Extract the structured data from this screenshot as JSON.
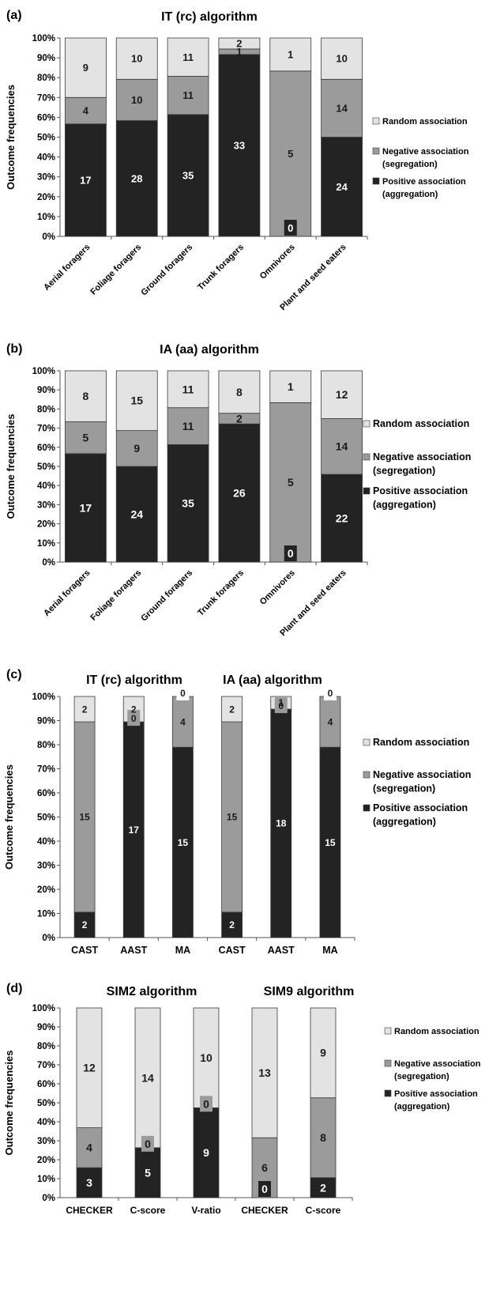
{
  "colors": {
    "random": "#e3e3e3",
    "negative": "#9b9b9b",
    "positive": "#232323",
    "outline": "#3a3a3a",
    "axis": "#555555"
  },
  "legend": {
    "random": "Random association",
    "negative": [
      "Negative association",
      "(segregation)"
    ],
    "positive": [
      "Positive association",
      "(aggregation)"
    ]
  },
  "chart_data": [
    {
      "panel": "(a)",
      "type": "bar",
      "stacked": true,
      "titles": [
        "IT (rc) algorithm"
      ],
      "ylabel": "Outcome frequencies",
      "ylim": [
        0,
        100
      ],
      "yticks": [
        "0%",
        "10%",
        "20%",
        "30%",
        "40%",
        "50%",
        "60%",
        "70%",
        "80%",
        "90%",
        "100%"
      ],
      "categories": [
        "Aerial foragers",
        "Foliage foragers",
        "Ground foragers",
        "Trunk foragers",
        "Omnivores",
        "Plant and seed eaters"
      ],
      "series": [
        {
          "name": "Positive association (aggregation)",
          "values": [
            17,
            28,
            35,
            33,
            0,
            24
          ]
        },
        {
          "name": "Negative association (segregation)",
          "values": [
            4,
            10,
            11,
            1,
            5,
            14
          ]
        },
        {
          "name": "Random association",
          "values": [
            9,
            10,
            11,
            2,
            1,
            10
          ]
        }
      ],
      "legend_position": "right",
      "grid": false
    },
    {
      "panel": "(b)",
      "type": "bar",
      "stacked": true,
      "titles": [
        "IA (aa) algorithm"
      ],
      "ylabel": "Outcome frequencies",
      "ylim": [
        0,
        100
      ],
      "yticks": [
        "0%",
        "10%",
        "20%",
        "30%",
        "40%",
        "50%",
        "60%",
        "70%",
        "80%",
        "90%",
        "100%"
      ],
      "categories": [
        "Aerial foragers",
        "Foliage foragers",
        "Ground foragers",
        "Trunk foragers",
        "Omnivores",
        "Plant and seed eaters"
      ],
      "series": [
        {
          "name": "Positive association (aggregation)",
          "values": [
            17,
            24,
            35,
            26,
            0,
            22
          ]
        },
        {
          "name": "Negative association (segregation)",
          "values": [
            5,
            9,
            11,
            2,
            5,
            14
          ]
        },
        {
          "name": "Random association",
          "values": [
            8,
            15,
            11,
            8,
            1,
            12
          ]
        }
      ],
      "legend_position": "right",
      "grid": false
    },
    {
      "panel": "(c)",
      "type": "bar",
      "stacked": true,
      "titles": [
        "IT (rc) algorithm",
        "IA (aa) algorithm"
      ],
      "ylabel": "Outcome frequencies",
      "ylim": [
        0,
        100
      ],
      "yticks": [
        "0%",
        "10%",
        "20%",
        "30%",
        "40%",
        "50%",
        "60%",
        "70%",
        "80%",
        "90%",
        "100%"
      ],
      "categories": [
        "CAST",
        "AAST",
        "MA",
        "CAST",
        "AAST",
        "MA"
      ],
      "series": [
        {
          "name": "Positive association (aggregation)",
          "values": [
            2,
            17,
            15,
            2,
            18,
            15
          ]
        },
        {
          "name": "Negative association (segregation)",
          "values": [
            15,
            0,
            4,
            15,
            0,
            4
          ]
        },
        {
          "name": "Random association",
          "values": [
            2,
            2,
            0,
            2,
            1,
            0
          ]
        }
      ],
      "legend_position": "right",
      "grid": false
    },
    {
      "panel": "(d)",
      "type": "bar",
      "stacked": true,
      "titles": [
        "SIM2 algorithm",
        "SIM9 algorithm"
      ],
      "ylabel": "Outcome frequencies",
      "ylim": [
        0,
        100
      ],
      "yticks": [
        "0%",
        "10%",
        "20%",
        "30%",
        "40%",
        "50%",
        "60%",
        "70%",
        "80%",
        "90%",
        "100%"
      ],
      "categories": [
        "CHECKER",
        "C-score",
        "V-ratio",
        "CHECKER",
        "C-score"
      ],
      "series": [
        {
          "name": "Positive association (aggregation)",
          "values": [
            3,
            5,
            9,
            0,
            2
          ]
        },
        {
          "name": "Negative association (segregation)",
          "values": [
            4,
            0,
            0,
            6,
            8
          ]
        },
        {
          "name": "Random association",
          "values": [
            12,
            14,
            10,
            13,
            9
          ]
        }
      ],
      "legend_position": "right",
      "grid": false
    }
  ]
}
